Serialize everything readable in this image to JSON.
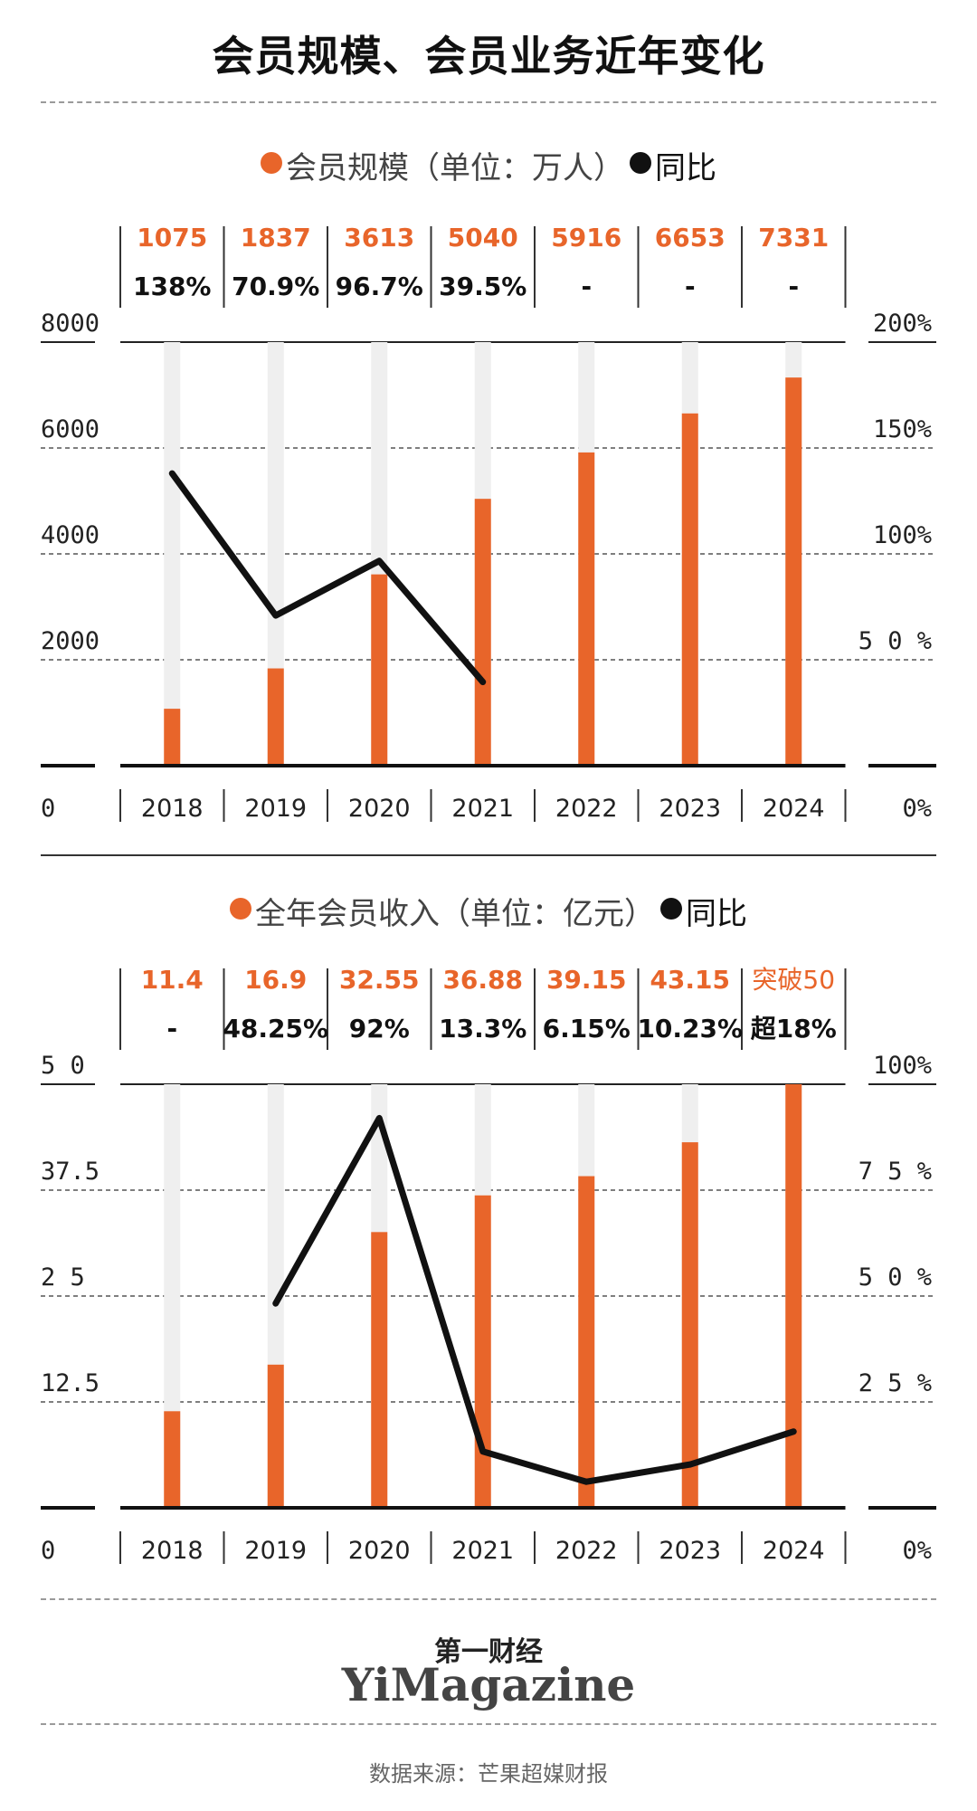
{
  "title": "会员规模、会员业务近年变化",
  "colors": {
    "accent": "#E8652A",
    "line": "#111111",
    "bar_track": "#EFEFEF"
  },
  "chart_data": [
    {
      "type": "bar",
      "legend": {
        "bar_label": "会员规模（单位：万人）",
        "line_label": "同比"
      },
      "categories": [
        "2018",
        "2019",
        "2020",
        "2021",
        "2022",
        "2023",
        "2024"
      ],
      "value_labels": [
        "1075",
        "1837",
        "3613",
        "5040",
        "5916",
        "6653",
        "7331"
      ],
      "yoy_labels": [
        "138%",
        "70.9%",
        "96.7%",
        "39.5%",
        "-",
        "-",
        "-"
      ],
      "values": [
        1075,
        1837,
        3613,
        5040,
        5916,
        6653,
        7331
      ],
      "yoy_values": [
        138,
        70.9,
        96.7,
        39.5,
        null,
        null,
        null
      ],
      "ylim": [
        0,
        8000
      ],
      "y2lim": [
        0,
        200
      ],
      "y_ticks": [
        "0",
        "2000",
        "4000",
        "6000",
        "8000"
      ],
      "y2_ticks": [
        "0%",
        "5 0 %",
        "100%",
        "150%",
        "200%"
      ],
      "grid": true
    },
    {
      "type": "bar",
      "legend": {
        "bar_label": "全年会员收入（单位：亿元）",
        "line_label": "同比"
      },
      "categories": [
        "2018",
        "2019",
        "2020",
        "2021",
        "2022",
        "2023",
        "2024"
      ],
      "value_labels": [
        "11.4",
        "16.9",
        "32.55",
        "36.88",
        "39.15",
        "43.15",
        "突破50"
      ],
      "yoy_labels": [
        "-",
        "48.25%",
        "92%",
        "13.3%",
        "6.15%",
        "10.23%",
        "超18%"
      ],
      "values": [
        11.4,
        16.9,
        32.55,
        36.88,
        39.15,
        43.15,
        50
      ],
      "yoy_values": [
        null,
        48.25,
        92,
        13.3,
        6.15,
        10.23,
        18
      ],
      "ylim": [
        0,
        50
      ],
      "y2lim": [
        0,
        100
      ],
      "y_ticks": [
        "0",
        "12.5",
        "2 5",
        "37.5",
        "5 0"
      ],
      "y2_ticks": [
        "0%",
        "2 5 %",
        "5 0 %",
        "7 5 %",
        "100%"
      ],
      "grid": true
    }
  ],
  "footer": {
    "brand_cn": "第一财经",
    "brand_en": "YiMagazine",
    "source": "数据来源：芒果超媒财报"
  }
}
